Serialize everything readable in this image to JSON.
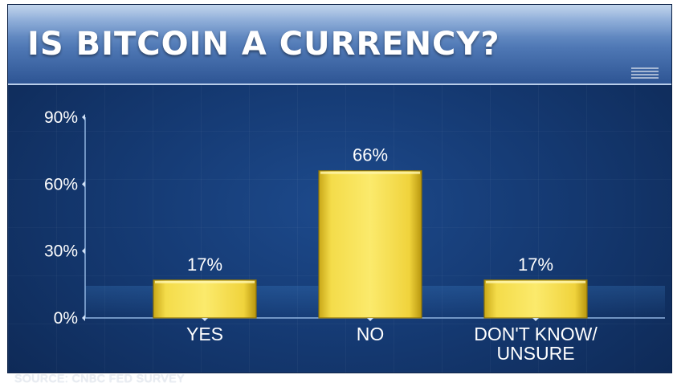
{
  "title": "IS BITCOIN A CURRENCY?",
  "source": "SOURCE: CNBC FED SURVEY",
  "colors": {
    "bar": "#f2d53a",
    "bar_edge": "#b89a10",
    "background": "#153a73",
    "title_bar": "#4e77b4"
  },
  "chart_data": {
    "type": "bar",
    "title": "IS BITCOIN A CURRENCY?",
    "categories": [
      [
        "YES"
      ],
      [
        "NO"
      ],
      [
        "DON'T KNOW/",
        "UNSURE"
      ]
    ],
    "values": [
      17,
      66,
      17
    ],
    "value_labels": [
      "17%",
      "66%",
      "17%"
    ],
    "yticks": [
      0,
      30,
      60,
      90
    ],
    "ytick_labels": [
      "0%",
      "30%",
      "60%",
      "90%"
    ],
    "ylim": [
      0,
      90
    ],
    "xlabel": "",
    "ylabel": "",
    "grid": false,
    "legend": "none"
  }
}
